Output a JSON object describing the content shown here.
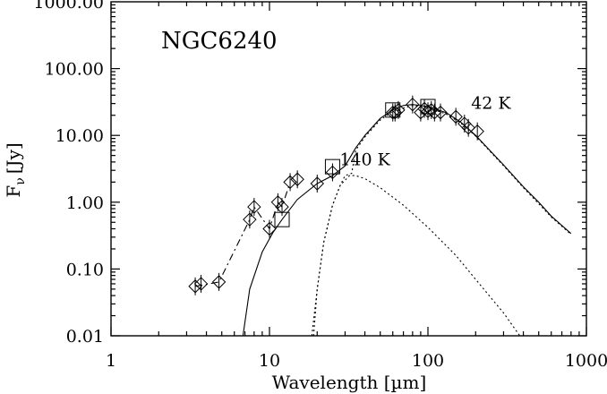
{
  "chart_data": {
    "type": "scatter",
    "title": "NGC6240",
    "xlabel": "Wavelength [µm]",
    "ylabel_main": "F",
    "ylabel_sub": "ν",
    "ylabel_unit": "[Jy]",
    "x_scale": "log",
    "y_scale": "log",
    "xlim": [
      1,
      1000
    ],
    "ylim": [
      0.01,
      1000
    ],
    "x_ticks": [
      1,
      10,
      100,
      1000
    ],
    "x_tick_labels": [
      "1",
      "10",
      "100",
      "1000"
    ],
    "y_ticks": [
      0.01,
      0.1,
      1,
      10,
      100,
      1000
    ],
    "y_tick_labels": [
      "0.01",
      "0.10",
      "1.00",
      "10.00",
      "100.00",
      "1000.00"
    ],
    "annotations": [
      {
        "text": "42 K",
        "x": 250,
        "y": 25
      },
      {
        "text": "140 K",
        "x": 40,
        "y": 3.6
      }
    ],
    "series": [
      {
        "marker": "diamond",
        "points": [
          [
            3.4,
            0.055
          ],
          [
            3.7,
            0.06
          ],
          [
            4.8,
            0.064
          ],
          [
            7.5,
            0.55
          ],
          [
            8.0,
            0.85
          ],
          [
            10.0,
            0.4
          ],
          [
            11.3,
            1.0
          ],
          [
            12.0,
            0.85
          ],
          [
            13.5,
            2.0
          ],
          [
            15.0,
            2.2
          ],
          [
            20.0,
            1.9
          ],
          [
            25.0,
            2.8
          ],
          [
            60.0,
            22
          ],
          [
            62.0,
            22
          ],
          [
            65.0,
            24
          ],
          [
            80.0,
            29
          ],
          [
            90.0,
            22
          ],
          [
            95.0,
            25
          ],
          [
            100.0,
            23
          ],
          [
            105.0,
            24
          ],
          [
            110.0,
            22
          ],
          [
            120.0,
            22
          ],
          [
            150.0,
            19
          ],
          [
            170.0,
            15
          ],
          [
            180.0,
            13
          ],
          [
            205.0,
            11.5
          ]
        ]
      },
      {
        "marker": "square",
        "points": [
          [
            12.0,
            0.55
          ],
          [
            25.0,
            3.4
          ],
          [
            60.0,
            24
          ],
          [
            100.0,
            27
          ]
        ]
      },
      {
        "line": "dash-dot",
        "points": [
          [
            3.4,
            0.055
          ],
          [
            4.8,
            0.064
          ],
          [
            7.5,
            0.55
          ],
          [
            8.0,
            0.85
          ],
          [
            10.0,
            0.4
          ],
          [
            11.3,
            1.0
          ],
          [
            12.0,
            0.85
          ],
          [
            13.5,
            2.0
          ]
        ]
      },
      {
        "line": "solid",
        "points": [
          [
            6.8,
            0.01
          ],
          [
            7.5,
            0.05
          ],
          [
            9.0,
            0.18
          ],
          [
            10.5,
            0.35
          ],
          [
            12.0,
            0.55
          ],
          [
            15.0,
            1.1
          ],
          [
            20.0,
            1.9
          ],
          [
            25.0,
            2.5
          ],
          [
            30.0,
            3.5
          ],
          [
            35.0,
            6.5
          ],
          [
            40.0,
            10
          ],
          [
            50.0,
            18
          ],
          [
            60.0,
            24
          ],
          [
            70.0,
            28
          ],
          [
            80.0,
            29
          ],
          [
            100.0,
            27
          ],
          [
            130.0,
            22
          ],
          [
            160.0,
            16
          ],
          [
            200.0,
            10
          ],
          [
            300.0,
            3.6
          ],
          [
            400.0,
            1.7
          ],
          [
            500.0,
            1.0
          ],
          [
            600.0,
            0.62
          ],
          [
            800.0,
            0.34
          ]
        ]
      },
      {
        "line": "dotted",
        "points": [
          [
            18.5,
            0.01
          ],
          [
            20.0,
            0.05
          ],
          [
            22.0,
            0.25
          ],
          [
            25.0,
            0.9
          ],
          [
            28.0,
            1.8
          ],
          [
            32.0,
            2.5
          ],
          [
            35.0,
            2.5
          ],
          [
            40.0,
            2.25
          ],
          [
            50.0,
            1.65
          ],
          [
            70.0,
            0.9
          ],
          [
            100.0,
            0.42
          ],
          [
            150.0,
            0.16
          ],
          [
            200.0,
            0.07
          ],
          [
            300.0,
            0.022
          ],
          [
            380.0,
            0.01
          ]
        ]
      },
      {
        "line": "dotted",
        "points": [
          [
            19.0,
            0.01
          ],
          [
            20.0,
            0.05
          ],
          [
            22.0,
            0.25
          ],
          [
            25.0,
            0.9
          ],
          [
            28.0,
            1.8
          ],
          [
            30.0,
            2.5
          ],
          [
            33.0,
            2.7
          ],
          [
            35.0,
            6.0
          ],
          [
            40.0,
            9.5
          ],
          [
            50.0,
            17
          ],
          [
            60.0,
            23
          ],
          [
            80.0,
            28
          ],
          [
            100.0,
            26
          ],
          [
            130.0,
            21
          ],
          [
            160.0,
            15.5
          ],
          [
            200.0,
            9.8
          ],
          [
            300.0,
            3.5
          ],
          [
            400.0,
            1.65
          ],
          [
            500.0,
            0.95
          ],
          [
            600.0,
            0.6
          ],
          [
            800.0,
            0.33
          ]
        ]
      }
    ]
  }
}
